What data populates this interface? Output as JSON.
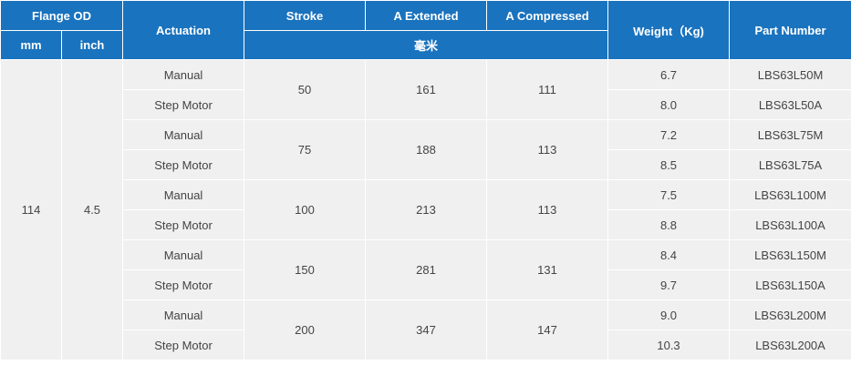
{
  "headers": {
    "flange_od": "Flange OD",
    "mm": "mm",
    "inch": "inch",
    "actuation": "Actuation",
    "stroke": "Stroke",
    "a_extended": "A Extended",
    "a_compressed": "A Compressed",
    "unit_label": "毫米",
    "weight": "Weight（Kg)",
    "part_number": "Part Number"
  },
  "flange": {
    "mm": "114",
    "inch": "4.5"
  },
  "groups": [
    {
      "stroke": "50",
      "a_extended": "161",
      "a_compressed": "111",
      "rows": [
        {
          "actuation": "Manual",
          "weight": "6.7",
          "part_number": "LBS63L50M"
        },
        {
          "actuation": "Step Motor",
          "weight": "8.0",
          "part_number": "LBS63L50A"
        }
      ]
    },
    {
      "stroke": "75",
      "a_extended": "188",
      "a_compressed": "113",
      "rows": [
        {
          "actuation": "Manual",
          "weight": "7.2",
          "part_number": "LBS63L75M"
        },
        {
          "actuation": "Step Motor",
          "weight": "8.5",
          "part_number": "LBS63L75A"
        }
      ]
    },
    {
      "stroke": "100",
      "a_extended": "213",
      "a_compressed": "113",
      "rows": [
        {
          "actuation": "Manual",
          "weight": "7.5",
          "part_number": "LBS63L100M"
        },
        {
          "actuation": "Step Motor",
          "weight": "8.8",
          "part_number": "LBS63L100A"
        }
      ]
    },
    {
      "stroke": "150",
      "a_extended": "281",
      "a_compressed": "131",
      "rows": [
        {
          "actuation": "Manual",
          "weight": "8.4",
          "part_number": "LBS63L150M"
        },
        {
          "actuation": "Step Motor",
          "weight": "9.7",
          "part_number": "LBS63L150A"
        }
      ]
    },
    {
      "stroke": "200",
      "a_extended": "347",
      "a_compressed": "147",
      "rows": [
        {
          "actuation": "Manual",
          "weight": "9.0",
          "part_number": "LBS63L200M"
        },
        {
          "actuation": "Step Motor",
          "weight": "10.3",
          "part_number": "LBS63L200A"
        }
      ]
    }
  ]
}
